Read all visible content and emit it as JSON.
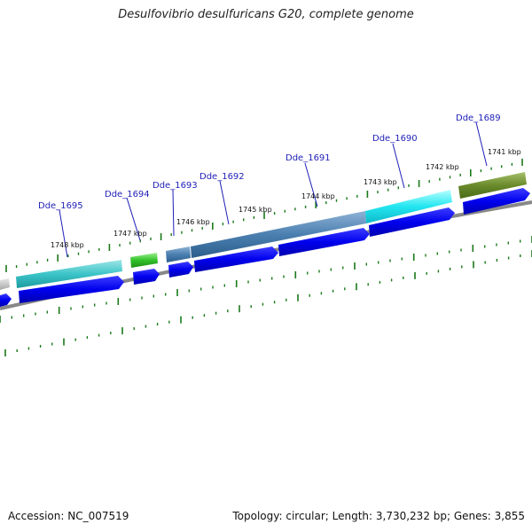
{
  "title": "Desulfovibrio desulfuricans G20, complete genome",
  "footer": {
    "accession": "Accession: NC_007519",
    "stats": "Topology: circular; Length: 3,730,232 bp; Genes: 3,855"
  },
  "genes": [
    {
      "name": "Dde_1695"
    },
    {
      "name": "Dde_1694"
    },
    {
      "name": "Dde_1693"
    },
    {
      "name": "Dde_1692"
    },
    {
      "name": "Dde_1691"
    },
    {
      "name": "Dde_1690"
    },
    {
      "name": "Dde_1689"
    }
  ],
  "kbp_labels": [
    "1748 kbp",
    "1747 kbp",
    "1746 kbp",
    "1745 kbp",
    "1744 kbp",
    "1743 kbp",
    "1742 kbp",
    "1741 kbp"
  ],
  "colors": {
    "cds_blue": "#0000ee",
    "backbone": "#888888",
    "tick_green": "#1a7a1a",
    "label_blue": "#1f1fb8"
  }
}
